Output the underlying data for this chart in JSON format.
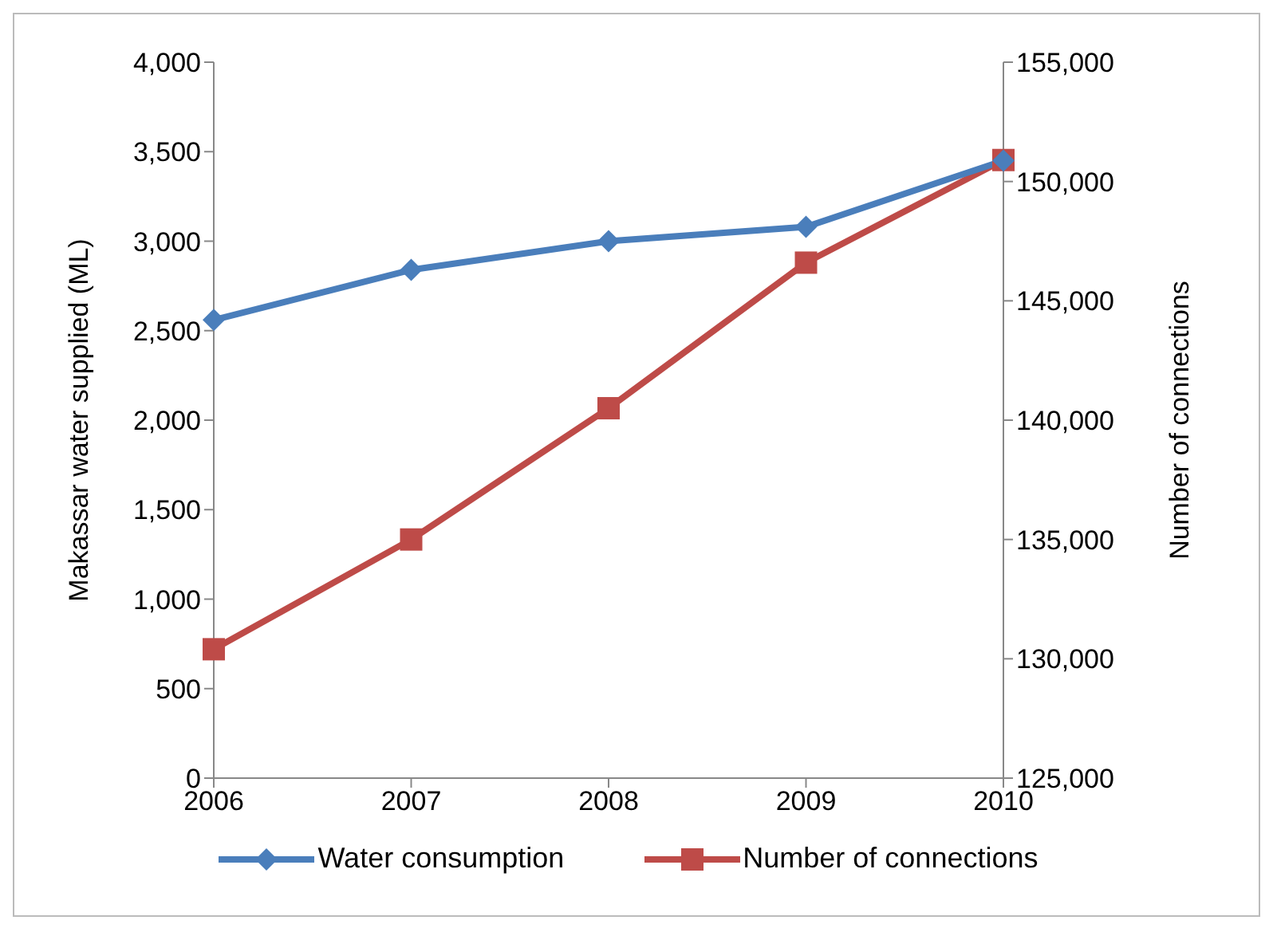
{
  "chart_data": {
    "type": "line",
    "categories": [
      "2006",
      "2007",
      "2008",
      "2009",
      "2010"
    ],
    "ylabel": "Makassar  water supplied (ML)",
    "y2label": "Number of connections",
    "ylim": [
      0,
      4000
    ],
    "yticks": [
      0,
      500,
      {
        "value": 1000,
        "label": "1,000"
      },
      {
        "value": 1500,
        "label": "1,500"
      },
      {
        "value": 2000,
        "label": "2,000"
      },
      {
        "value": 2500,
        "label": "2,500"
      },
      {
        "value": 3000,
        "label": "3,000"
      },
      {
        "value": 3500,
        "label": "3,500"
      },
      {
        "value": 4000,
        "label": "4,000"
      }
    ],
    "y2lim": [
      125000,
      155000
    ],
    "y2ticks": [
      {
        "value": 125000,
        "label": "125,000"
      },
      {
        "value": 130000,
        "label": "130,000"
      },
      {
        "value": 135000,
        "label": "135,000"
      },
      {
        "value": 140000,
        "label": "140,000"
      },
      {
        "value": 145000,
        "label": "145,000"
      },
      {
        "value": 150000,
        "label": "150,000"
      },
      {
        "value": 155000,
        "label": "155,000"
      }
    ],
    "grid": false,
    "legend": "bottom",
    "line_style": "solid",
    "series": [
      {
        "name": "Water consumption",
        "color": "#4a7ebb",
        "marker": "diamond",
        "values": [
          2560,
          2840,
          3000,
          3080,
          3450
        ]
      },
      {
        "name": "Number of connections",
        "color": "#be4b48",
        "marker": "square",
        "axis": "y2",
        "values": [
          130400,
          135000,
          140500,
          146600,
          150900
        ]
      }
    ]
  }
}
